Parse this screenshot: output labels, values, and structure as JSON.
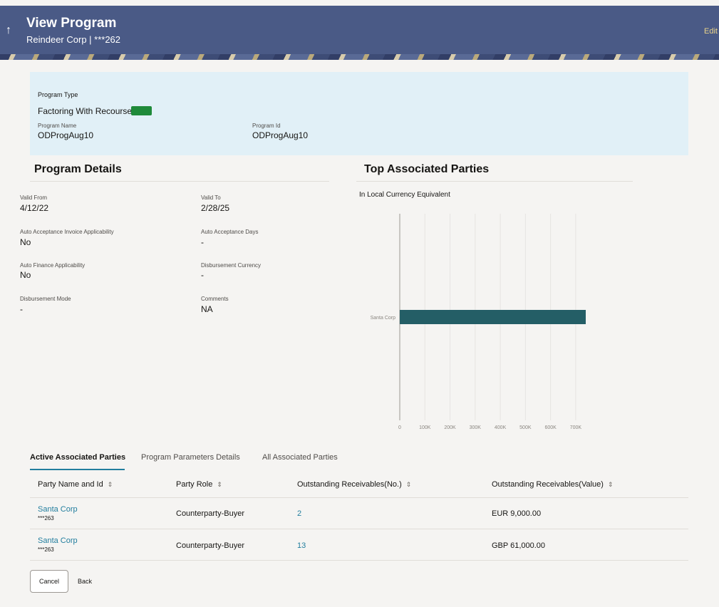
{
  "header": {
    "title": "View Program",
    "subtitle": "Reindeer Corp | ***262",
    "back_icon": "↑",
    "edit_label": "Edit"
  },
  "program": {
    "type_label": "Program Type",
    "type_value": "Factoring With Recourse",
    "badge_color": "#1f8a3a",
    "name_label": "Program Name",
    "name_value": "ODProgAug10",
    "id_label": "Program Id",
    "id_value": "ODProgAug10"
  },
  "details": {
    "title": "Program Details",
    "fields": [
      {
        "label": "Valid From",
        "value": "4/12/22"
      },
      {
        "label": "Valid To",
        "value": "2/28/25"
      },
      {
        "label": "Auto Acceptance Invoice Applicability",
        "value": "No"
      },
      {
        "label": "Auto Acceptance Days",
        "value": "-"
      },
      {
        "label": "Auto Finance Applicability",
        "value": "No"
      },
      {
        "label": "Disbursement Currency",
        "value": "-"
      },
      {
        "label": "Disbursement Mode",
        "value": "-"
      },
      {
        "label": "Comments",
        "value": "NA"
      }
    ]
  },
  "top_parties": {
    "title": "Top Associated Parties",
    "subtitle": "In Local Currency Equivalent"
  },
  "chart_data": {
    "type": "bar",
    "orientation": "horizontal",
    "categories": [
      "Santa Corp"
    ],
    "values": [
      740000
    ],
    "xlim": [
      0,
      740000
    ],
    "ticks": [
      0,
      100000,
      200000,
      300000,
      400000,
      500000,
      600000,
      700000
    ],
    "tick_labels": [
      "0",
      "100K",
      "200K",
      "300K",
      "400K",
      "500K",
      "600K",
      "700K"
    ],
    "bar_color": "#245e66",
    "grid": true
  },
  "tabs": [
    {
      "label": "Active Associated Parties",
      "active": true
    },
    {
      "label": "Program Parameters Details",
      "active": false
    },
    {
      "label": "All Associated Parties",
      "active": false
    }
  ],
  "table": {
    "headers": [
      "Party Name and Id",
      "Party Role",
      "Outstanding Receivables(No.)",
      "Outstanding Receivables(Value)"
    ],
    "sort_icon": "⇕",
    "rows": [
      {
        "name": "Santa Corp",
        "id": "***263",
        "role": "Counterparty-Buyer",
        "count": "2",
        "value": "EUR 9,000.00"
      },
      {
        "name": "Santa Corp",
        "id": "***263",
        "role": "Counterparty-Buyer",
        "count": "13",
        "value": "GBP 61,000.00"
      }
    ]
  },
  "actions": {
    "cancel": "Cancel",
    "back": "Back"
  }
}
